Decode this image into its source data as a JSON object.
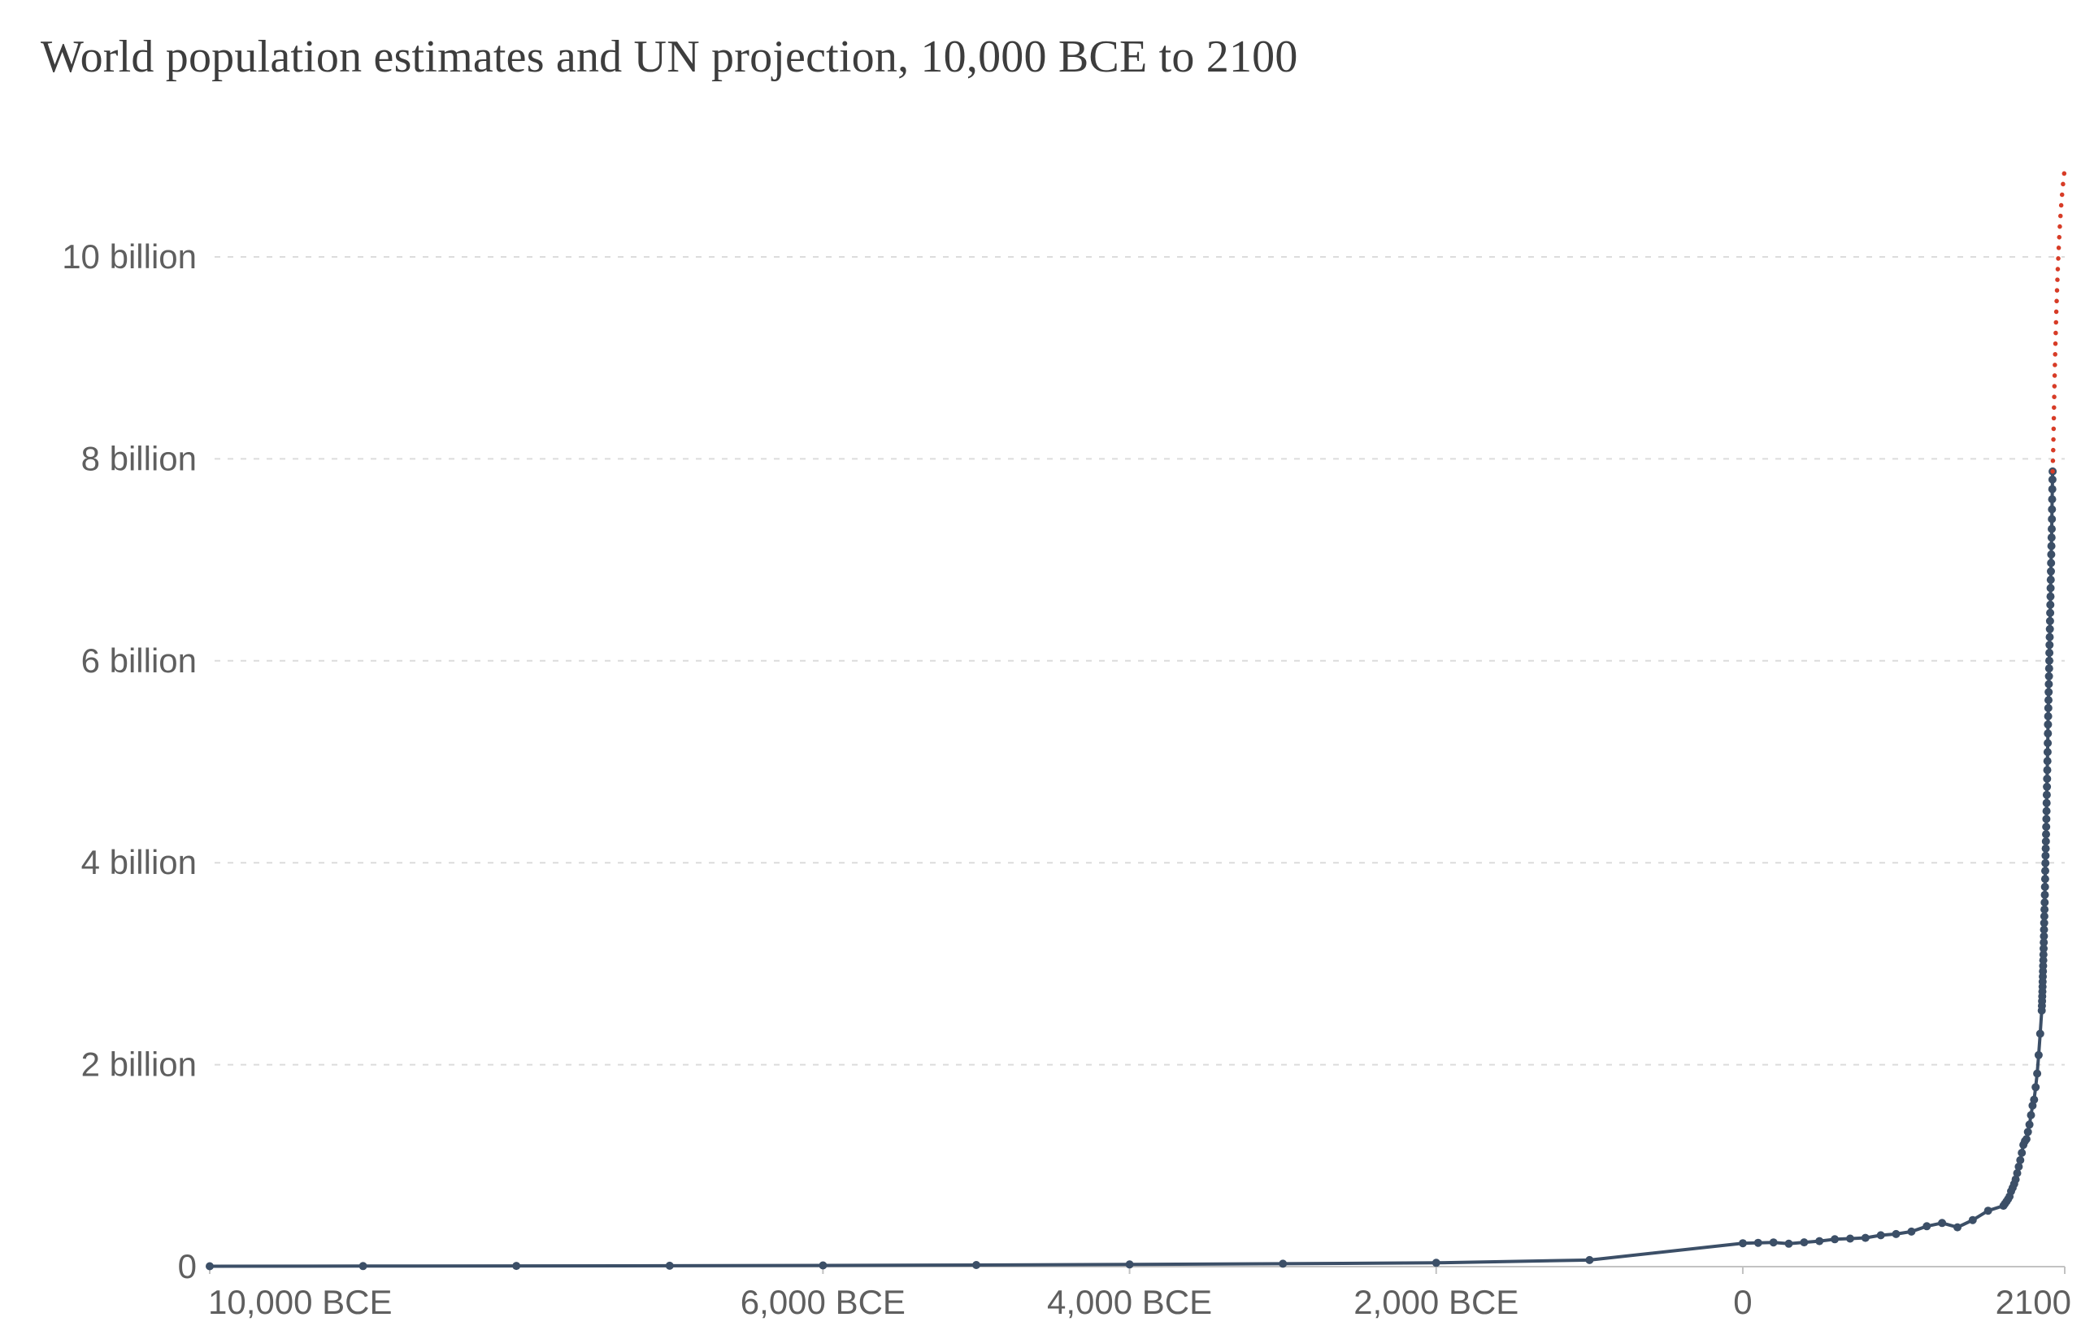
{
  "title": "World population estimates and UN projection, 10,000 BCE to 2100",
  "colors": {
    "historical": "#3c4f67",
    "projection": "#d73c27",
    "grid": "#dcdcdc",
    "axis_line": "#c2c2c2",
    "axis_text": "#5f5f5f",
    "title_text": "#3d3d3d",
    "background": "#ffffff"
  },
  "chart_data": {
    "type": "line",
    "title": "World population estimates and UN projection, 10,000 BCE to 2100",
    "xlabel": "",
    "ylabel": "",
    "grid": "dashed-horizontal",
    "legend_position": "none",
    "x_axis": {
      "min": -10000,
      "max": 2100,
      "ticks": [
        {
          "value": -10000,
          "label": "10,000 BCE"
        },
        {
          "value": -6000,
          "label": "6,000 BCE"
        },
        {
          "value": -4000,
          "label": "4,000 BCE"
        },
        {
          "value": -2000,
          "label": "2,000 BCE"
        },
        {
          "value": 0,
          "label": "0"
        },
        {
          "value": 2100,
          "label": "2100"
        }
      ]
    },
    "y_axis": {
      "min": 0,
      "max": 10,
      "unit": "billion",
      "ticks": [
        {
          "value": 0,
          "label": "0"
        },
        {
          "value": 2,
          "label": "2 billion"
        },
        {
          "value": 4,
          "label": "4 billion"
        },
        {
          "value": 6,
          "label": "6 billion"
        },
        {
          "value": 8,
          "label": "8 billion"
        },
        {
          "value": 10,
          "label": "10 billion"
        }
      ]
    },
    "series": [
      {
        "name": "World population estimates",
        "style": "solid-line-with-points",
        "color_key": "historical",
        "unit": "billion",
        "points": [
          [
            -10000,
            0.004
          ],
          [
            -9000,
            0.006
          ],
          [
            -8000,
            0.007
          ],
          [
            -7000,
            0.009
          ],
          [
            -6000,
            0.012
          ],
          [
            -5000,
            0.016
          ],
          [
            -4000,
            0.022
          ],
          [
            -3000,
            0.029
          ],
          [
            -2000,
            0.038
          ],
          [
            -1000,
            0.065
          ],
          [
            0,
            0.232
          ],
          [
            100,
            0.236
          ],
          [
            200,
            0.24
          ],
          [
            300,
            0.227
          ],
          [
            400,
            0.241
          ],
          [
            500,
            0.253
          ],
          [
            600,
            0.271
          ],
          [
            700,
            0.278
          ],
          [
            800,
            0.285
          ],
          [
            900,
            0.311
          ],
          [
            1000,
            0.323
          ],
          [
            1100,
            0.347
          ],
          [
            1200,
            0.4
          ],
          [
            1300,
            0.432
          ],
          [
            1400,
            0.39
          ],
          [
            1500,
            0.461
          ],
          [
            1600,
            0.554
          ],
          [
            1700,
            0.603
          ],
          [
            1710,
            0.623
          ],
          [
            1720,
            0.645
          ],
          [
            1730,
            0.668
          ],
          [
            1740,
            0.695
          ],
          [
            1750,
            0.746
          ],
          [
            1760,
            0.781
          ],
          [
            1770,
            0.819
          ],
          [
            1780,
            0.864
          ],
          [
            1790,
            0.926
          ],
          [
            1800,
            0.99
          ],
          [
            1810,
            1.055
          ],
          [
            1820,
            1.127
          ],
          [
            1830,
            1.206
          ],
          [
            1840,
            1.242
          ],
          [
            1850,
            1.263
          ],
          [
            1860,
            1.334
          ],
          [
            1870,
            1.407
          ],
          [
            1880,
            1.501
          ],
          [
            1890,
            1.595
          ],
          [
            1900,
            1.654
          ],
          [
            1910,
            1.777
          ],
          [
            1920,
            1.912
          ],
          [
            1930,
            2.095
          ],
          [
            1940,
            2.307
          ],
          [
            1950,
            2.536
          ],
          [
            1951,
            2.584
          ],
          [
            1952,
            2.63
          ],
          [
            1953,
            2.677
          ],
          [
            1954,
            2.725
          ],
          [
            1955,
            2.773
          ],
          [
            1956,
            2.822
          ],
          [
            1957,
            2.873
          ],
          [
            1958,
            2.925
          ],
          [
            1959,
            2.979
          ],
          [
            1960,
            3.035
          ],
          [
            1961,
            3.091
          ],
          [
            1962,
            3.15
          ],
          [
            1963,
            3.211
          ],
          [
            1964,
            3.273
          ],
          [
            1965,
            3.337
          ],
          [
            1966,
            3.403
          ],
          [
            1967,
            3.47
          ],
          [
            1968,
            3.537
          ],
          [
            1969,
            3.607
          ],
          [
            1970,
            3.682
          ],
          [
            1971,
            3.761
          ],
          [
            1972,
            3.84
          ],
          [
            1973,
            3.92
          ],
          [
            1974,
            3.996
          ],
          [
            1975,
            4.07
          ],
          [
            1976,
            4.141
          ],
          [
            1977,
            4.212
          ],
          [
            1978,
            4.283
          ],
          [
            1979,
            4.356
          ],
          [
            1980,
            4.433
          ],
          [
            1981,
            4.512
          ],
          [
            1982,
            4.592
          ],
          [
            1983,
            4.672
          ],
          [
            1984,
            4.752
          ],
          [
            1985,
            4.832
          ],
          [
            1986,
            4.918
          ],
          [
            1987,
            5.007
          ],
          [
            1988,
            5.097
          ],
          [
            1989,
            5.185
          ],
          [
            1990,
            5.28
          ],
          [
            1991,
            5.369
          ],
          [
            1992,
            5.451
          ],
          [
            1993,
            5.532
          ],
          [
            1994,
            5.611
          ],
          [
            1995,
            5.69
          ],
          [
            1996,
            5.769
          ],
          [
            1997,
            5.847
          ],
          [
            1998,
            5.924
          ],
          [
            1999,
            6.001
          ],
          [
            2000,
            6.079
          ],
          [
            2001,
            6.157
          ],
          [
            2002,
            6.235
          ],
          [
            2003,
            6.314
          ],
          [
            2004,
            6.394
          ],
          [
            2005,
            6.474
          ],
          [
            2006,
            6.555
          ],
          [
            2007,
            6.637
          ],
          [
            2008,
            6.72
          ],
          [
            2009,
            6.803
          ],
          [
            2010,
            6.886
          ],
          [
            2011,
            6.969
          ],
          [
            2012,
            7.053
          ],
          [
            2013,
            7.137
          ],
          [
            2014,
            7.221
          ],
          [
            2015,
            7.306
          ],
          [
            2016,
            7.403
          ],
          [
            2017,
            7.5
          ],
          [
            2018,
            7.6
          ],
          [
            2019,
            7.7
          ],
          [
            2020,
            7.795
          ],
          [
            2021,
            7.875
          ]
        ]
      },
      {
        "name": "UN projection",
        "style": "dotted-line",
        "color_key": "projection",
        "unit": "billion",
        "points": [
          [
            2021,
            7.875
          ],
          [
            2025,
            8.11
          ],
          [
            2030,
            8.5
          ],
          [
            2035,
            8.87
          ],
          [
            2040,
            9.19
          ],
          [
            2045,
            9.45
          ],
          [
            2050,
            9.69
          ],
          [
            2055,
            9.89
          ],
          [
            2060,
            10.07
          ],
          [
            2065,
            10.22
          ],
          [
            2070,
            10.35
          ],
          [
            2075,
            10.47
          ],
          [
            2080,
            10.57
          ],
          [
            2085,
            10.66
          ],
          [
            2090,
            10.74
          ],
          [
            2095,
            10.81
          ],
          [
            2100,
            10.88
          ]
        ]
      }
    ]
  }
}
